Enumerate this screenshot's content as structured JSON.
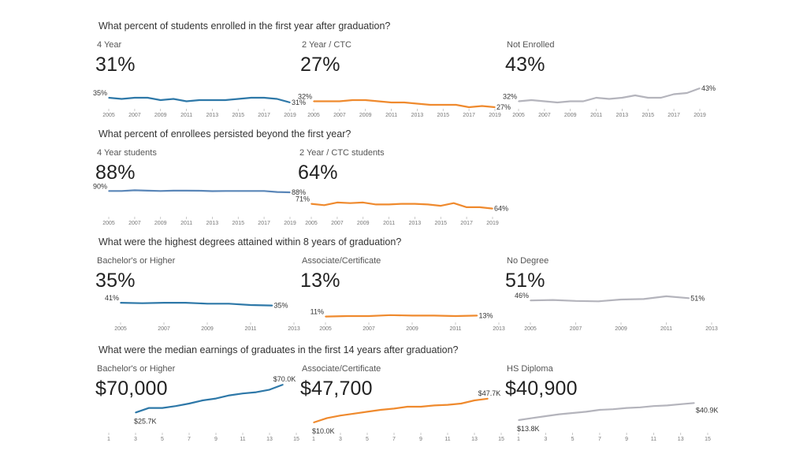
{
  "sections": [
    {
      "title": "What percent of students enrolled in the first year after graduation?"
    },
    {
      "title": "What percent of enrollees persisted beyond the first year?"
    },
    {
      "title": "What were the highest degrees attained within 8 years of graduation?"
    },
    {
      "title": "What were the median earnings of graduates in the first 14 years after graduation?"
    }
  ],
  "panels": [
    {
      "label": "4 Year",
      "big": "31%",
      "start_label": "35%",
      "end_label": "31%"
    },
    {
      "label": "2 Year / CTC",
      "big": "27%",
      "start_label": "32%",
      "end_label": "27%"
    },
    {
      "label": "Not Enrolled",
      "big": "43%",
      "start_label": "32%",
      "end_label": "43%"
    },
    {
      "label": "4 Year students",
      "big": "88%",
      "start_label": "90%",
      "end_label": "88%"
    },
    {
      "label": "2 Year / CTC students",
      "big": "64%",
      "start_label": "71%",
      "end_label": "64%"
    },
    {
      "label": "Bachelor's or Higher",
      "big": "35%",
      "start_label": "41%",
      "end_label": "35%"
    },
    {
      "label": "Associate/Certificate",
      "big": "13%",
      "start_label": "11%",
      "end_label": "13%"
    },
    {
      "label": "No Degree",
      "big": "51%",
      "start_label": "46%",
      "end_label": "51%"
    },
    {
      "label": "Bachelor's or Higher",
      "big": "$70,000",
      "start_label": "$25.7K",
      "end_label": "$70.0K"
    },
    {
      "label": "Associate/Certificate",
      "big": "$47,700",
      "start_label": "$10.0K",
      "end_label": "$47.7K"
    },
    {
      "label": "HS Diploma",
      "big": "$40,900",
      "start_label": "$13.8K",
      "end_label": "$40.9K"
    }
  ],
  "chart_data": [
    {
      "type": "line",
      "title": "4 Year",
      "color": "#2e78a8",
      "x": [
        2005,
        2006,
        2007,
        2008,
        2009,
        2010,
        2011,
        2012,
        2013,
        2014,
        2015,
        2016,
        2017,
        2018,
        2019
      ],
      "values": [
        35,
        34,
        35,
        35,
        33,
        34,
        32,
        33,
        33,
        33,
        34,
        35,
        35,
        34,
        31
      ],
      "xticks": [
        "2005",
        "2007",
        "2009",
        "2011",
        "2013",
        "2015",
        "2017",
        "2019"
      ],
      "ylim": [
        25,
        45
      ]
    },
    {
      "type": "line",
      "title": "2 Year / CTC",
      "color": "#ef8a2e",
      "x": [
        2005,
        2006,
        2007,
        2008,
        2009,
        2010,
        2011,
        2012,
        2013,
        2014,
        2015,
        2016,
        2017,
        2018,
        2019
      ],
      "values": [
        32,
        32,
        32,
        33,
        33,
        32,
        31,
        31,
        30,
        29,
        29,
        29,
        27,
        28,
        27
      ],
      "xticks": [
        "2005",
        "2007",
        "2009",
        "2011",
        "2013",
        "2015",
        "2017",
        "2019"
      ],
      "ylim": [
        25,
        45
      ]
    },
    {
      "type": "line",
      "title": "Not Enrolled",
      "color": "#b4b4bc",
      "x": [
        2005,
        2006,
        2007,
        2008,
        2009,
        2010,
        2011,
        2012,
        2013,
        2014,
        2015,
        2016,
        2017,
        2018,
        2019
      ],
      "values": [
        32,
        33,
        32,
        31,
        32,
        32,
        35,
        34,
        35,
        37,
        35,
        35,
        38,
        39,
        43
      ],
      "xticks": [
        "2005",
        "2007",
        "2009",
        "2011",
        "2013",
        "2015",
        "2017",
        "2019"
      ],
      "ylim": [
        25,
        45
      ]
    },
    {
      "type": "line",
      "title": "4 Year students",
      "color": "#5a86b8",
      "x": [
        2005,
        2006,
        2007,
        2008,
        2009,
        2010,
        2011,
        2012,
        2013,
        2014,
        2015,
        2016,
        2017,
        2018,
        2019
      ],
      "values": [
        90,
        90,
        91,
        90.5,
        90,
        90.5,
        90.5,
        90.3,
        89.8,
        90,
        90,
        90,
        90,
        88.5,
        88
      ],
      "xticks": [
        "2005",
        "2007",
        "2009",
        "2011",
        "2013",
        "2015",
        "2017",
        "2019"
      ],
      "ylim": [
        60,
        95
      ]
    },
    {
      "type": "line",
      "title": "2 Year / CTC students",
      "color": "#ef8a2e",
      "x": [
        2005,
        2006,
        2007,
        2008,
        2009,
        2010,
        2011,
        2012,
        2013,
        2014,
        2015,
        2016,
        2017,
        2018,
        2019
      ],
      "values": [
        71,
        69,
        73,
        72,
        73,
        70,
        70,
        71,
        71,
        70,
        68,
        72,
        66,
        66,
        64
      ],
      "xticks": [
        "2005",
        "2007",
        "2009",
        "2011",
        "2013",
        "2015",
        "2017",
        "2019"
      ],
      "ylim": [
        60,
        95
      ]
    },
    {
      "type": "line",
      "title": "Bachelor's or Higher",
      "color": "#2e78a8",
      "x": [
        2005,
        2006,
        2007,
        2008,
        2009,
        2010,
        2011,
        2012
      ],
      "values": [
        41,
        40,
        41,
        41,
        39,
        39,
        36,
        35
      ],
      "xticks": [
        "2005",
        "2007",
        "2009",
        "2011",
        "2013"
      ],
      "xlim": [
        2005,
        2013
      ],
      "ylim": [
        0,
        60
      ]
    },
    {
      "type": "line",
      "title": "Associate/Certificate",
      "color": "#ef8a2e",
      "x": [
        2005,
        2006,
        2007,
        2008,
        2009,
        2010,
        2011,
        2012
      ],
      "values": [
        11,
        12,
        12,
        14,
        13,
        13,
        12,
        13
      ],
      "xticks": [
        "2005",
        "2007",
        "2009",
        "2011",
        "2013"
      ],
      "xlim": [
        2005,
        2013
      ],
      "ylim": [
        0,
        60
      ]
    },
    {
      "type": "line",
      "title": "No Degree",
      "color": "#b4b4bc",
      "x": [
        2005,
        2006,
        2007,
        2008,
        2009,
        2010,
        2011,
        2012
      ],
      "values": [
        46,
        47,
        45,
        44,
        48,
        49,
        55,
        51
      ],
      "xticks": [
        "2005",
        "2007",
        "2009",
        "2011",
        "2013"
      ],
      "xlim": [
        2005,
        2013
      ],
      "ylim": [
        0,
        60
      ]
    },
    {
      "type": "line",
      "title": "Bachelor's or Higher",
      "color": "#2e78a8",
      "x": [
        3,
        4,
        5,
        6,
        7,
        8,
        9,
        10,
        11,
        12,
        13,
        14
      ],
      "values": [
        25.7,
        33,
        33,
        36,
        40,
        45,
        48,
        53,
        56,
        58,
        62,
        70
      ],
      "xticks": [
        "1",
        "3",
        "5",
        "7",
        "9",
        "11",
        "13",
        "15"
      ],
      "xlim": [
        1,
        15
      ],
      "ylim": [
        0,
        75
      ]
    },
    {
      "type": "line",
      "title": "Associate/Certificate",
      "color": "#ef8a2e",
      "x": [
        1,
        2,
        3,
        4,
        5,
        6,
        7,
        8,
        9,
        10,
        11,
        12,
        13,
        14
      ],
      "values": [
        10,
        17,
        21,
        24,
        27,
        30,
        32,
        35,
        35,
        37,
        38,
        40,
        45,
        47.7
      ],
      "xticks": [
        "1",
        "3",
        "5",
        "7",
        "9",
        "11",
        "13",
        "15"
      ],
      "xlim": [
        1,
        15
      ],
      "ylim": [
        0,
        75
      ]
    },
    {
      "type": "line",
      "title": "HS Diploma",
      "color": "#b4b4bc",
      "x": [
        1,
        2,
        3,
        4,
        5,
        6,
        7,
        8,
        9,
        10,
        11,
        12,
        13,
        14
      ],
      "values": [
        13.8,
        17,
        20,
        23,
        25,
        27,
        30,
        31,
        33,
        34,
        36,
        37,
        39,
        40.9
      ],
      "xticks": [
        "1",
        "3",
        "5",
        "7",
        "9",
        "11",
        "13",
        "15"
      ],
      "xlim": [
        1,
        15
      ],
      "ylim": [
        0,
        75
      ]
    }
  ]
}
